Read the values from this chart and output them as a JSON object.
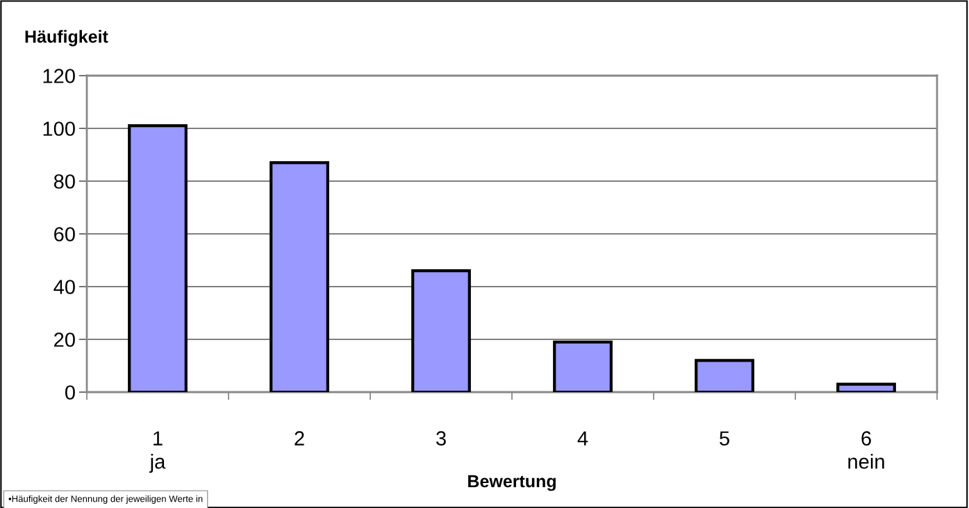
{
  "chart_data": {
    "type": "bar",
    "title": "Häufigkeit",
    "xlabel": "Bewertung",
    "categories": [
      "1\nja",
      "2",
      "3",
      "4",
      "5",
      "6\nnein"
    ],
    "values": [
      101,
      87,
      46,
      19,
      12,
      3
    ],
    "color": "#9999ff",
    "ylim": [
      0,
      120
    ],
    "yticks": [
      0,
      20,
      40,
      60,
      80,
      100,
      120
    ],
    "grid": "y",
    "annotations": [
      "•Häufigkeit der Nennung der jeweiligen Werte in"
    ]
  }
}
